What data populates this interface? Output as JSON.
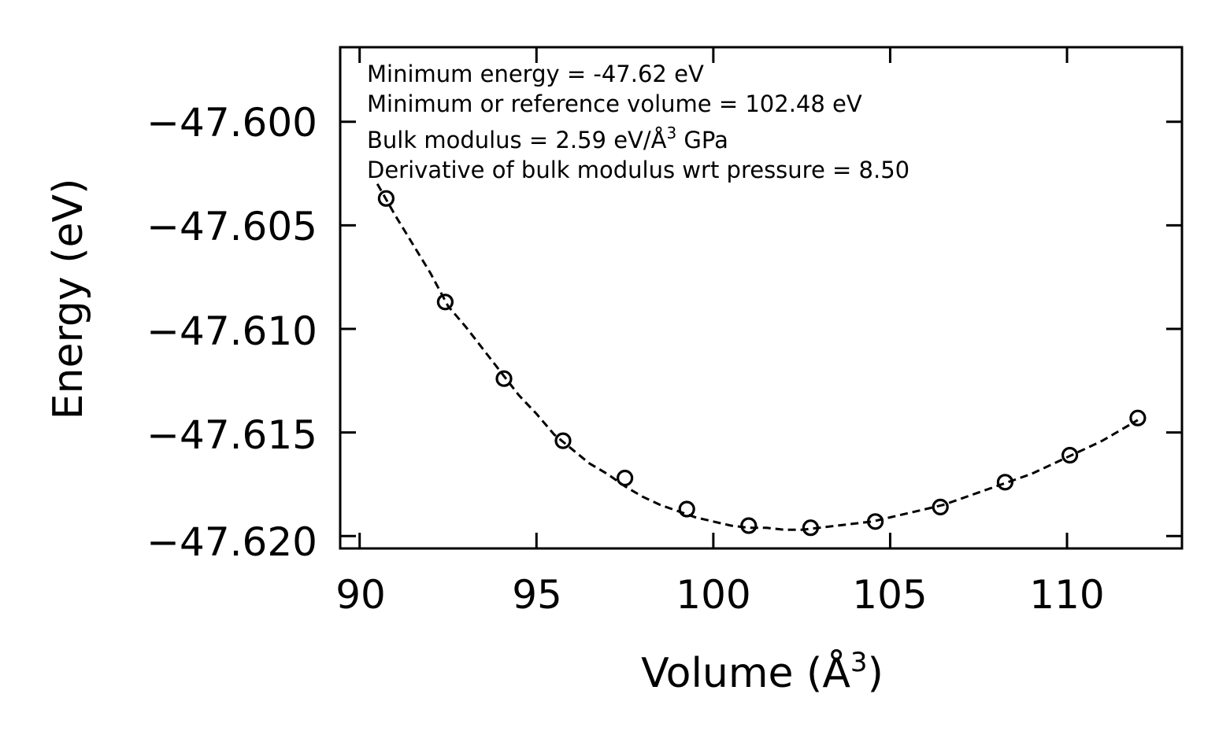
{
  "chart_data": {
    "type": "scatter",
    "title": "",
    "xlabel": "Volume (Å",
    "xlabel_sup": "3",
    "xlabel_end": ")",
    "ylabel": "Energy (eV)",
    "xlim": [
      89.45,
      113.25
    ],
    "ylim": [
      -47.6206,
      -47.5964
    ],
    "xticks": [
      90,
      95,
      100,
      105,
      110
    ],
    "xtick_labels": [
      "90",
      "95",
      "100",
      "105",
      "110"
    ],
    "yticks": [
      -47.6,
      -47.605,
      -47.61,
      -47.615,
      -47.62
    ],
    "ytick_labels": [
      "−47.600",
      "−47.605",
      "−47.610",
      "−47.615",
      "−47.620"
    ],
    "series": [
      {
        "name": "data",
        "style": "open-circle",
        "color": "#000000",
        "x": [
          90.75,
          92.42,
          94.08,
          95.75,
          97.5,
          99.25,
          101.0,
          102.75,
          104.58,
          106.42,
          108.25,
          110.08,
          112.0
        ],
        "y": [
          -47.6037,
          -47.6087,
          -47.6124,
          -47.6154,
          -47.6172,
          -47.6187,
          -47.6195,
          -47.6196,
          -47.6193,
          -47.6186,
          -47.6174,
          -47.6161,
          -47.6143
        ]
      },
      {
        "name": "fit",
        "style": "dashed-line",
        "color": "#000000",
        "x": [
          90.5,
          91.0,
          91.5,
          92.0,
          92.5,
          93.0,
          93.5,
          94.0,
          94.5,
          95.0,
          95.5,
          96.0,
          96.5,
          97.0,
          97.5,
          98.0,
          98.5,
          99.0,
          99.5,
          100.0,
          100.5,
          101.0,
          101.5,
          102.0,
          102.5,
          103.0,
          103.5,
          104.0,
          104.5,
          105.0,
          105.5,
          106.0,
          106.5,
          107.0,
          107.5,
          108.0,
          108.5,
          109.0,
          109.5,
          110.0,
          110.5,
          111.0,
          111.5,
          112.0
        ],
        "y": [
          -47.603,
          -47.6045,
          -47.6059,
          -47.6073,
          -47.6089,
          -47.6099,
          -47.611,
          -47.6121,
          -47.6132,
          -47.6141,
          -47.6151,
          -47.6158,
          -47.6165,
          -47.617,
          -47.6176,
          -47.6181,
          -47.6185,
          -47.6188,
          -47.6191,
          -47.6193,
          -47.6195,
          -47.6196,
          -47.6196,
          -47.6197,
          -47.6197,
          -47.6196,
          -47.6195,
          -47.6194,
          -47.6193,
          -47.6191,
          -47.6189,
          -47.6187,
          -47.6185,
          -47.6182,
          -47.6179,
          -47.6176,
          -47.6173,
          -47.617,
          -47.6166,
          -47.6162,
          -47.6158,
          -47.6154,
          -47.6149,
          -47.6144
        ]
      }
    ],
    "annotations": [
      "Minimum energy = -47.62 eV",
      "Minimum or reference volume = 102.48 eV",
      "Bulk modulus = 2.59 eV/Å",
      "3",
      " GPa",
      "Derivative of bulk modulus wrt pressure = 8.50"
    ],
    "grid": false,
    "legend": "none"
  }
}
